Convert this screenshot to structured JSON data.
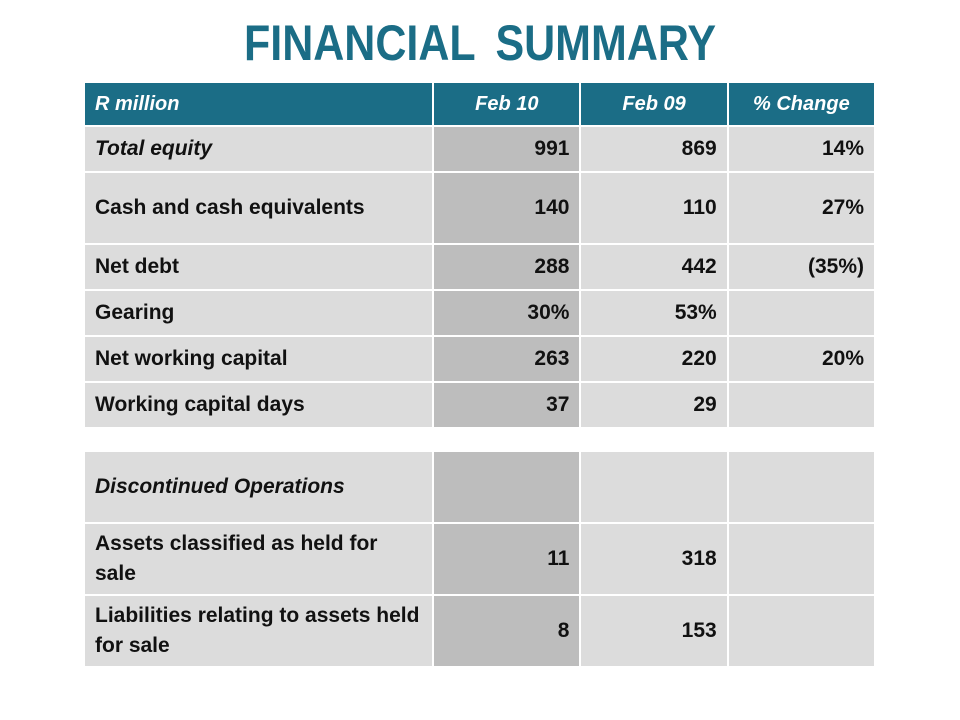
{
  "title": "FINANCIAL  SUMMARY",
  "header": {
    "label": "R million",
    "col1": "Feb 10",
    "col2": "Feb 09",
    "col3": "% Change"
  },
  "rows": [
    {
      "label": "Total equity",
      "feb10": "991",
      "feb09": "869",
      "change": "14%"
    },
    {
      "label": "Cash and cash equivalents",
      "feb10": "140",
      "feb09": "110",
      "change": "27%"
    },
    {
      "label": "Net debt",
      "feb10": "288",
      "feb09": "442",
      "change": "(35%)"
    },
    {
      "label": "Gearing",
      "feb10": "30%",
      "feb09": "53%",
      "change": ""
    },
    {
      "label": "Net working capital",
      "feb10": "263",
      "feb09": "220",
      "change": "20%"
    },
    {
      "label": "Working capital days",
      "feb10": "37",
      "feb09": "29",
      "change": ""
    }
  ],
  "discontinued": {
    "heading": "Discontinued Operations",
    "rows": [
      {
        "label": "Assets classified as held for sale",
        "feb10": "11",
        "feb09": "318",
        "change": ""
      },
      {
        "label": "Liabilities relating to assets held for sale",
        "feb10": "8",
        "feb09": "153",
        "change": ""
      }
    ]
  }
}
